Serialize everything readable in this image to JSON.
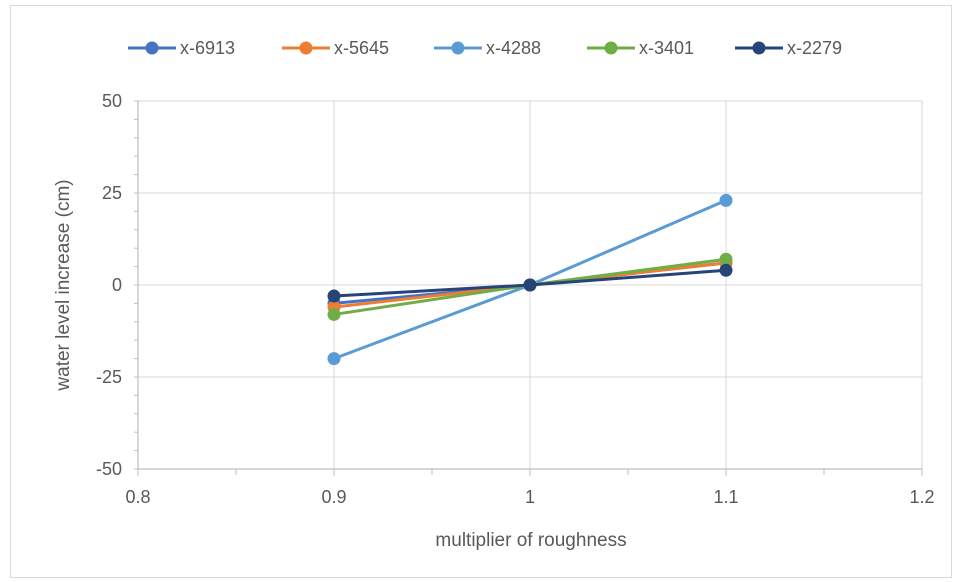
{
  "chart_data": {
    "type": "line",
    "xlabel": "multiplier of roughness",
    "ylabel": "water level increase (cm)",
    "xlim": [
      0.8,
      1.2
    ],
    "ylim": [
      -50,
      50
    ],
    "x_ticks": [
      "0.8",
      "0.9",
      "1",
      "1.1",
      "1.2"
    ],
    "y_ticks": [
      "50",
      "25",
      "0",
      "-25",
      "-50"
    ],
    "grid": true,
    "legend_position": "top",
    "x": [
      0.9,
      1.0,
      1.1
    ],
    "series": [
      {
        "name": "x-6913",
        "color": "#4472c4",
        "values": [
          -5,
          0,
          6
        ]
      },
      {
        "name": "x-5645",
        "color": "#ed7d31",
        "values": [
          -6,
          0,
          6
        ]
      },
      {
        "name": "x-4288",
        "color": "#5b9bd5",
        "values": [
          -20,
          0,
          23
        ]
      },
      {
        "name": "x-3401",
        "color": "#70ad47",
        "values": [
          -8,
          0,
          7
        ]
      },
      {
        "name": "x-2279",
        "color": "#264478",
        "values": [
          -3,
          0,
          4
        ]
      }
    ]
  }
}
